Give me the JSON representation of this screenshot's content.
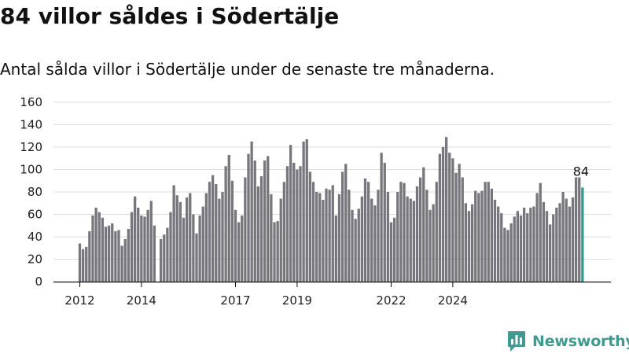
{
  "title": "84 villor såldes i Södertälje",
  "subtitle": "Antal sålda villor i Södertälje under de senaste tre månaderna.",
  "brand": "Newsworthy",
  "colors": {
    "bar": "#77767c",
    "highlight": "#2a9d8f",
    "grid": "#dddddd",
    "axis": "#111111",
    "brand": "#3f9a8f"
  },
  "chart_data": {
    "type": "bar",
    "title": "84 villor såldes i Södertälje",
    "subtitle": "Antal sålda villor i Södertälje under de senaste tre månaderna.",
    "xlabel": "",
    "ylabel": "",
    "ylim": [
      0,
      160
    ],
    "yticks": [
      0,
      20,
      40,
      60,
      80,
      100,
      120,
      140,
      160
    ],
    "xticks": [
      {
        "label": "2012",
        "index": 0
      },
      {
        "label": "2014",
        "index": 19
      },
      {
        "label": "2017",
        "index": 48
      },
      {
        "label": "2019",
        "index": 67
      },
      {
        "label": "2022",
        "index": 96
      },
      {
        "label": "2024",
        "index": 115
      }
    ],
    "grid": true,
    "highlight_last": true,
    "last_value_label": "84",
    "values": [
      34,
      29,
      31,
      45,
      59,
      66,
      62,
      57,
      49,
      50,
      52,
      45,
      46,
      32,
      38,
      47,
      62,
      76,
      66,
      59,
      58,
      64,
      72,
      50,
      0,
      38,
      42,
      48,
      62,
      86,
      77,
      71,
      57,
      75,
      79,
      60,
      43,
      59,
      67,
      79,
      89,
      95,
      87,
      74,
      80,
      103,
      113,
      90,
      64,
      53,
      59,
      93,
      114,
      125,
      108,
      85,
      94,
      108,
      112,
      78,
      53,
      54,
      74,
      89,
      103,
      122,
      106,
      100,
      103,
      125,
      127,
      98,
      89,
      80,
      79,
      73,
      83,
      82,
      86,
      59,
      78,
      98,
      105,
      82,
      64,
      56,
      65,
      76,
      92,
      89,
      74,
      68,
      82,
      115,
      106,
      80,
      53,
      57,
      80,
      89,
      88,
      76,
      74,
      72,
      85,
      93,
      102,
      82,
      64,
      69,
      89,
      114,
      120,
      129,
      115,
      110,
      97,
      105,
      93,
      70,
      63,
      69,
      81,
      79,
      81,
      89,
      89,
      83,
      73,
      67,
      61,
      48,
      46,
      52,
      58,
      63,
      59,
      66,
      61,
      66,
      67,
      79,
      88,
      71,
      63,
      51,
      60,
      66,
      70,
      80,
      74,
      67,
      75,
      93,
      93,
      84
    ]
  }
}
